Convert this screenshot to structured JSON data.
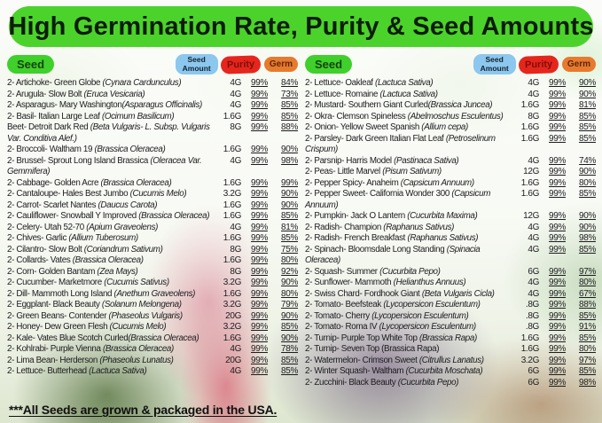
{
  "title": "High Germination Rate, Purity & Seed Amounts",
  "footer_note": "***All Seeds are grown & packaged in the USA.",
  "colors": {
    "title_bg": "#4bd32c",
    "seed_pill_bg": "#3fd02c",
    "amount_pill_bg": "#8bc7ee",
    "purity_pill_bg": "#e6261d",
    "germ_pill_bg": "#e77a2e"
  },
  "table": {
    "headers": {
      "seed": "Seed",
      "amount": "Seed Amount",
      "purity": "Purity",
      "germ": "Germ"
    },
    "columns": [
      {
        "rows": [
          {
            "name": "2- Artichoke- Green Globe ",
            "sci": "(Cynara Cardunculus)",
            "amount": "4G",
            "purity": "99%",
            "germ": "84%"
          },
          {
            "name": "2- Arugula- Slow Bolt ",
            "sci": "(Eruca Vesicaria)",
            "amount": "4G",
            "purity": "99%",
            "germ": "73%"
          },
          {
            "name": "2- Asparagus- Mary Washington",
            "sci": "(Asparagus Officinalis)",
            "amount": "4G",
            "purity": "99%",
            "germ": "85%"
          },
          {
            "name": "2- Basil- Italian Large Leaf ",
            "sci": "(Ocimum Basilicum)",
            "amount": "1.6G",
            "purity": "99%",
            "germ": "85%"
          },
          {
            "name": "Beet- Detroit Dark Red ",
            "sci": "(Beta Vulgaris- L. Subsp. Vulgaris Var. Conditiva Alef.)",
            "amount": "8G",
            "purity": "99%",
            "germ": "88%"
          },
          {
            "name": "2- Broccoli- Waltham 19 ",
            "sci": "(Brassica Oleracea)",
            "amount": "1.6G",
            "purity": "99%",
            "germ": "90%"
          },
          {
            "name": "2- Brussel- Sprout Long Island Brassica ",
            "sci": "(Oleracea Var. Gemmifera)",
            "amount": "4G",
            "purity": "99%",
            "germ": "98%"
          },
          {
            "name": "2- Cabbage- Golden Acre ",
            "sci": "(Brassica Oleracea)",
            "amount": "1.6G",
            "purity": "99%",
            "germ": "99%"
          },
          {
            "name": "2- Cantaloupe- Hales Best Jumbo ",
            "sci": "(Cucumis Melo)",
            "amount": "3.2G",
            "purity": "99%",
            "germ": "90%"
          },
          {
            "name": "2- Carrot- Scarlet Nantes ",
            "sci": "(Daucus Carota)",
            "amount": "1.6G",
            "purity": "99%",
            "germ": "90%"
          },
          {
            "name": "2- Cauliflower- Snowball Y Improved ",
            "sci": "(Brassica Oleracea)",
            "amount": "1.6G",
            "purity": "99%",
            "germ": "85%"
          },
          {
            "name": "2- Celery- Utah 52-70 ",
            "sci": "(Apium Graveolens)",
            "amount": "4G",
            "purity": "99%",
            "germ": "81%"
          },
          {
            "name": "2- Chives- Garlic ",
            "sci": "(Allium Tuberosum)",
            "amount": "1.6G",
            "purity": "99%",
            "germ": "85%"
          },
          {
            "name": "2- Cilantro- Slow Bolt ",
            "sci": "(Coriandrum Sativum)",
            "amount": "8G",
            "purity": "99%",
            "germ": "75%"
          },
          {
            "name": "2- Collards- Vates ",
            "sci": "(Brassica Oleracea)",
            "amount": "1.6G",
            "purity": "99%",
            "germ": "80%"
          },
          {
            "name": "2- Corn- Golden Bantam ",
            "sci": "(Zea Mays)",
            "amount": "8G",
            "purity": "99%",
            "germ": "92%"
          },
          {
            "name": "2- Cucumber- Marketmore ",
            "sci": "(Cucumis Sativus)",
            "amount": "3.2G",
            "purity": "99%",
            "germ": "90%"
          },
          {
            "name": "2- Dill- Mammoth Long Island ",
            "sci": "(Anethum Graveolens)",
            "amount": "1.6G",
            "purity": "99%",
            "germ": "80%"
          },
          {
            "name": "2- Eggplant- Black Beauty ",
            "sci": "(Solanum Melongena)",
            "amount": "3.2G",
            "purity": "99%",
            "germ": "79%"
          },
          {
            "name": "2- Green Beans- Contender ",
            "sci": "(Phaseolus Vulgaris)",
            "amount": "20G",
            "purity": "99%",
            "germ": "90%"
          },
          {
            "name": "2- Honey- Dew Green Flesh ",
            "sci": "(Cucumis Melo)",
            "amount": "3.2G",
            "purity": "99%",
            "germ": "85%"
          },
          {
            "name": "2- Kale- Vates Blue Scotch Curled",
            "sci": "(Brassica Oleracea)",
            "amount": "1.6G",
            "purity": "99%",
            "germ": "90%"
          },
          {
            "name": "2- Kohlrabi- Purple Vienna ",
            "sci": "(Brassica Oleracea)",
            "amount": "4G",
            "purity": "99%",
            "germ": "78%"
          },
          {
            "name": "2- Lima Bean- Herderson ",
            "sci": "(Phaseolus Lunatus)",
            "amount": "20G",
            "purity": "99%",
            "germ": "85%"
          },
          {
            "name": "2- Lettuce- Butterhead ",
            "sci": "(Lactuca Sativa)",
            "amount": "4G",
            "purity": "99%",
            "germ": "85%"
          }
        ]
      },
      {
        "rows": [
          {
            "name": "2- Lettuce- Oakleaf ",
            "sci": "(Lactuca Sativa)",
            "amount": "4G",
            "purity": "99%",
            "germ": "90%"
          },
          {
            "name": "2- Lettuce- Romaine ",
            "sci": "(Lactuca Sativa)",
            "amount": "4G",
            "purity": "99%",
            "germ": "90%"
          },
          {
            "name": "2- Mustard- Southern Giant Curled",
            "sci": "(Brassica Juncea)",
            "amount": "1.6G",
            "purity": "99%",
            "germ": "81%"
          },
          {
            "name": "2- Okra- Clemson Spineless ",
            "sci": "(Abelmoschus Esculentus)",
            "amount": "8G",
            "purity": "99%",
            "germ": "85%"
          },
          {
            "name": "2- Onion- Yellow Sweet Spanish ",
            "sci": "(Allium cepa)",
            "amount": "1.6G",
            "purity": "99%",
            "germ": "85%"
          },
          {
            "name": "2- Parsley- Dark Green Italian Flat Leaf ",
            "sci": "(Petroselinum Crispum)",
            "amount": "1.6G",
            "purity": "99%",
            "germ": "85%"
          },
          {
            "name": "2- Parsnip- Harris Model ",
            "sci": "(Pastinaca Sativa)",
            "amount": "4G",
            "purity": "99%",
            "germ": "74%"
          },
          {
            "name": "2- Peas- Little Marvel ",
            "sci": "(Pisum Sativum)",
            "amount": "12G",
            "purity": "99%",
            "germ": "90%"
          },
          {
            "name": "2- Pepper Spicy- Anaheim ",
            "sci": "(Capsicum Annuum)",
            "amount": "1.6G",
            "purity": "99%",
            "germ": "80%"
          },
          {
            "name": "2- Pepper Sweet- California Wonder 300 ",
            "sci": "(Capsicum Annuum)",
            "amount": "1.6G",
            "purity": "99%",
            "germ": "85%"
          },
          {
            "name": "2- Pumpkin- Jack O Lantern ",
            "sci": "(Cucurbita Maxima)",
            "amount": "12G",
            "purity": "99%",
            "germ": "90%"
          },
          {
            "name": "2- Radish- Champion ",
            "sci": "(Raphanus Sativus)",
            "amount": "4G",
            "purity": "99%",
            "germ": "90%"
          },
          {
            "name": "2- Radish- French Breakfast ",
            "sci": "(Raphanus Sativus)",
            "amount": "4G",
            "purity": "99%",
            "germ": "98%"
          },
          {
            "name": "2- Spinach- Bloomsdale Long Standing ",
            "sci": "(Spinacia Oleracea)",
            "amount": "4G",
            "purity": "99%",
            "germ": "85%"
          },
          {
            "name": "2- Squash- Summer ",
            "sci": "(Cucurbita Pepo)",
            "amount": "6G",
            "purity": "99%",
            "germ": "97%"
          },
          {
            "name": "2- Sunflower- Mammoth ",
            "sci": "(Helianthus Annuus)",
            "amount": "4G",
            "purity": "99%",
            "germ": "80%"
          },
          {
            "name": "2- Swiss Chard- Fordhook Giant ",
            "sci": "(Beta Vulgaris Cicla)",
            "amount": "4G",
            "purity": "99%",
            "germ": "67%"
          },
          {
            "name": "2- Tomato- Beefsteak ",
            "sci": "(Lycopersicon Esculentum)",
            "amount": ".8G",
            "purity": "99%",
            "germ": "88%"
          },
          {
            "name": "2- Tomato- Cherry ",
            "sci": "(Lycopersicon Esculentum)",
            "amount": ".8G",
            "purity": "99%",
            "germ": "85%"
          },
          {
            "name": "2- Tomato- Roma IV ",
            "sci": "(Lycopersicon Esculentum)",
            "amount": ".8G",
            "purity": "99%",
            "germ": "91%"
          },
          {
            "name": "2- Turnip- Purple Top White Top ",
            "sci": "(Brassica Rapa)",
            "amount": "1.6G",
            "purity": "99%",
            "germ": "85%"
          },
          {
            "name": "2- Turnip- Seven Top (Brassica Rapa)",
            "sci": "",
            "amount": "1.6G",
            "purity": "99%",
            "germ": "80%"
          },
          {
            "name": "2- Watermelon- Crimson Sweet ",
            "sci": "(Citrullus Lanatus)",
            "amount": "3.2G",
            "purity": "99%",
            "germ": "97%"
          },
          {
            "name": "2- Winter Squash- Waltham ",
            "sci": "(Cucurbita Moschata)",
            "amount": "6G",
            "purity": "99%",
            "germ": "85%"
          },
          {
            "name": "2- Zucchini- Black Beauty ",
            "sci": "(Cucurbita Pepo)",
            "amount": "6G",
            "purity": "99%",
            "germ": "98%"
          }
        ]
      }
    ]
  }
}
